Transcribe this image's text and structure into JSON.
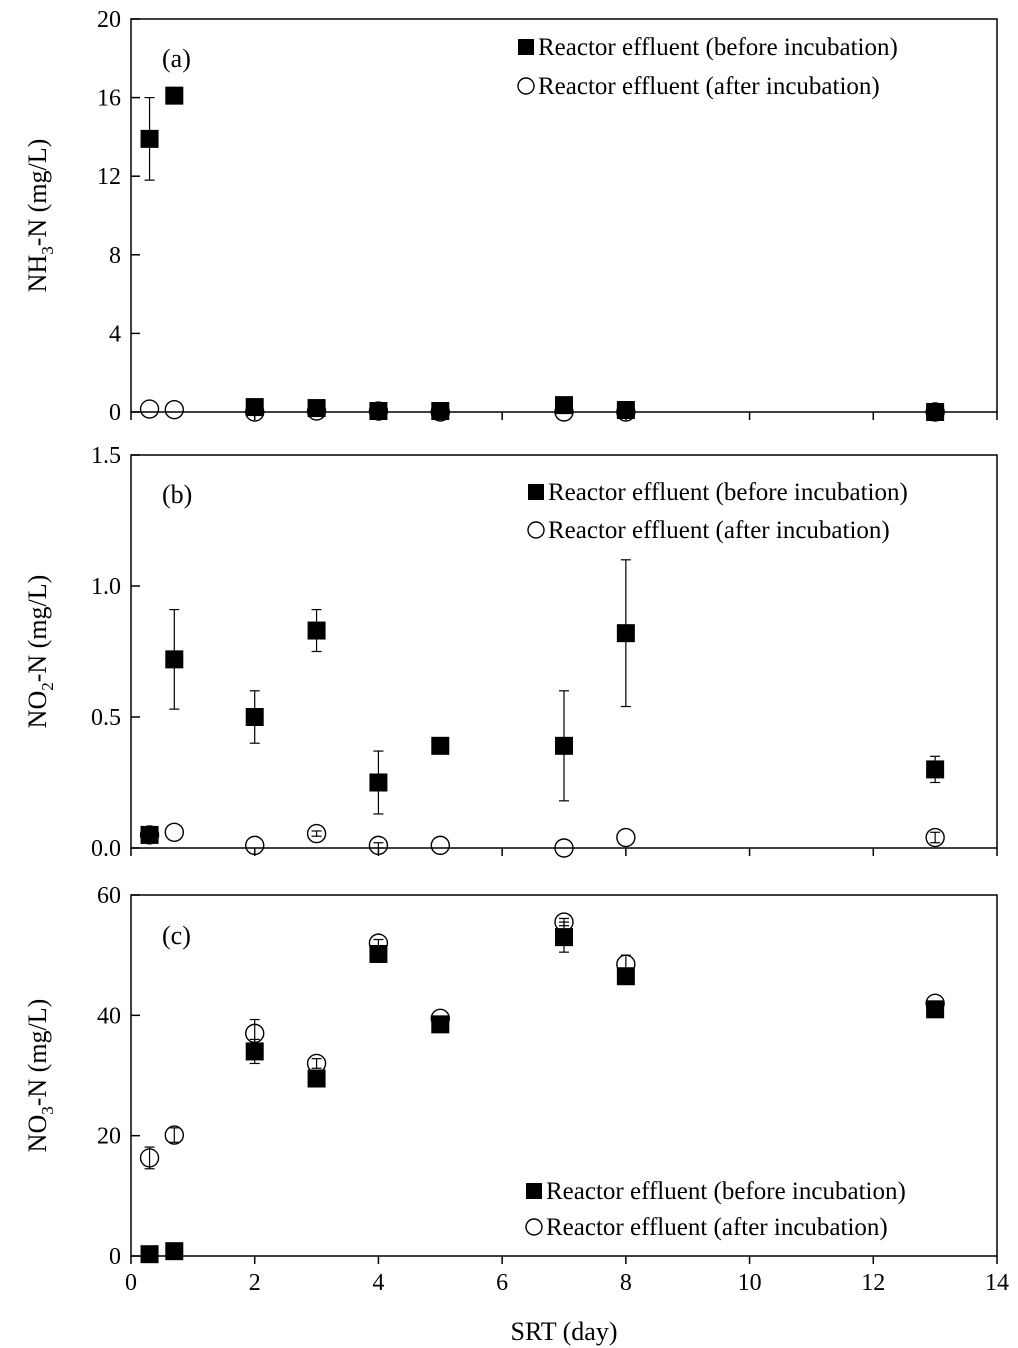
{
  "chart_data": [
    {
      "type": "scatter",
      "panel_label": "(a)",
      "ylabel": "NH3-N (mg/L)",
      "ylabel_parts": {
        "pre": "NH",
        "sub": "3",
        "post": "-N (mg/L)"
      },
      "xlabel": "",
      "xlim": [
        0,
        14
      ],
      "ylim": [
        0,
        20
      ],
      "yticks": [
        0,
        4,
        8,
        12,
        16,
        20
      ],
      "yticks_labels": [
        "0",
        "4",
        "8",
        "12",
        "16",
        "20"
      ],
      "legend_position": "top-right",
      "series": [
        {
          "name": "Reactor effluent (before incubation)",
          "marker": "filled-square",
          "x": [
            0.3,
            0.7,
            2,
            3,
            4,
            5,
            7,
            8,
            13
          ],
          "y": [
            13.9,
            16.1,
            0.25,
            0.2,
            0.05,
            0.05,
            0.35,
            0.1,
            0.0
          ],
          "err": [
            2.1,
            0,
            0,
            0,
            0,
            0,
            0,
            0,
            0
          ]
        },
        {
          "name": "Reactor effluent (after incubation)",
          "marker": "open-circle",
          "x": [
            0.3,
            0.7,
            2,
            3,
            4,
            5,
            7,
            8,
            13
          ],
          "y": [
            0.15,
            0.12,
            0.0,
            0.05,
            0.05,
            0.0,
            0.0,
            0.0,
            0.0
          ],
          "err": [
            0,
            0,
            0,
            0,
            0,
            0,
            0,
            0,
            0
          ]
        }
      ]
    },
    {
      "type": "scatter",
      "panel_label": "(b)",
      "ylabel": "NO2-N (mg/L)",
      "ylabel_parts": {
        "pre": "NO",
        "sub": "2",
        "post": "-N (mg/L)"
      },
      "xlabel": "",
      "xlim": [
        0,
        14
      ],
      "ylim": [
        0,
        1.5
      ],
      "yticks": [
        0,
        0.5,
        1.0,
        1.5
      ],
      "yticks_labels": [
        "0.0",
        "0.5",
        "1.0",
        "1.5"
      ],
      "legend_position": "top-right",
      "series": [
        {
          "name": "Reactor effluent (before incubation)",
          "marker": "filled-square",
          "x": [
            0.3,
            0.7,
            2,
            3,
            4,
            5,
            7,
            8,
            13
          ],
          "y": [
            0.05,
            0.72,
            0.5,
            0.83,
            0.25,
            0.39,
            0.39,
            0.82,
            0.3
          ],
          "err": [
            0.01,
            0.19,
            0.1,
            0.08,
            0.12,
            0,
            0.21,
            0.28,
            0.05
          ]
        },
        {
          "name": "Reactor effluent (after incubation)",
          "marker": "open-circle",
          "x": [
            0.3,
            0.7,
            2,
            3,
            4,
            5,
            7,
            8,
            13
          ],
          "y": [
            0.05,
            0.06,
            0.01,
            0.055,
            0.01,
            0.01,
            0.0,
            0.04,
            0.04
          ],
          "err": [
            0,
            0,
            0,
            0.01,
            0.01,
            0,
            0,
            0,
            0.02
          ]
        }
      ]
    },
    {
      "type": "scatter",
      "panel_label": "(c)",
      "ylabel": "NO3-N (mg/L)",
      "ylabel_parts": {
        "pre": "NO",
        "sub": "3",
        "post": "-N (mg/L)"
      },
      "xlabel": "SRT (day)",
      "xlim": [
        0,
        14
      ],
      "ylim": [
        0,
        60
      ],
      "yticks": [
        0,
        20,
        40,
        60
      ],
      "yticks_labels": [
        "0",
        "20",
        "40",
        "60"
      ],
      "xticks": [
        0,
        2,
        4,
        6,
        8,
        10,
        12,
        14
      ],
      "xticks_labels": [
        "0",
        "2",
        "4",
        "6",
        "8",
        "10",
        "12",
        "14"
      ],
      "legend_position": "bottom-right",
      "series": [
        {
          "name": "Reactor effluent (before incubation)",
          "marker": "filled-square",
          "x": [
            0.3,
            0.7,
            2,
            3,
            4,
            5,
            7,
            8,
            13
          ],
          "y": [
            0.3,
            0.8,
            34.0,
            29.5,
            50.2,
            38.5,
            53.0,
            46.5,
            41.0
          ],
          "err": [
            0,
            0,
            2.0,
            0,
            0,
            0,
            2.5,
            0,
            0
          ]
        },
        {
          "name": "Reactor effluent (after incubation)",
          "marker": "open-circle",
          "x": [
            0.3,
            0.7,
            2,
            3,
            4,
            5,
            7,
            8,
            13
          ],
          "y": [
            16.3,
            20.1,
            37.0,
            32.0,
            52.0,
            39.5,
            55.5,
            48.5,
            42.0
          ],
          "err": [
            1.8,
            1.2,
            2.3,
            0.8,
            0.6,
            0,
            0.6,
            1.5,
            0
          ]
        }
      ]
    }
  ]
}
